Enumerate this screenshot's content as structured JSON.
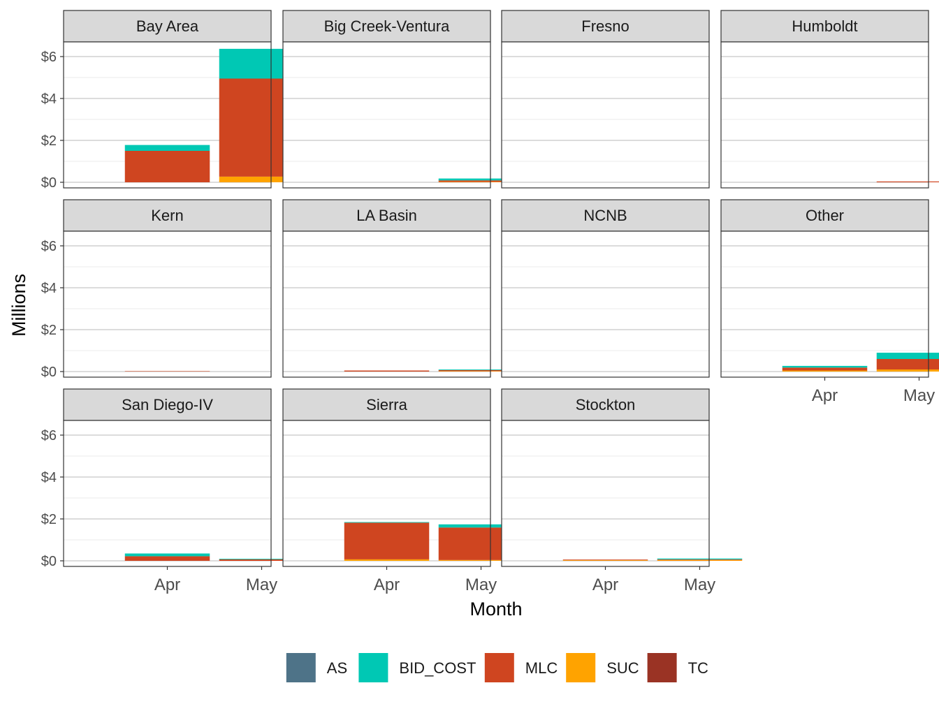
{
  "chart_data": {
    "type": "bar",
    "stacked": true,
    "faceted": true,
    "xlabel": "Month",
    "ylabel": "Millions",
    "categories": [
      "Apr",
      "May"
    ],
    "ylim": [
      0,
      7
    ],
    "yticks": [
      0,
      2,
      4,
      6
    ],
    "ytick_labels": [
      "$0",
      "$2",
      "$4",
      "$6"
    ],
    "grid": true,
    "legend_position": "bottom",
    "legend": [
      {
        "name": "AS",
        "color": "#4E7388"
      },
      {
        "name": "BID_COST",
        "color": "#00C8B4"
      },
      {
        "name": "MLC",
        "color": "#CF4520"
      },
      {
        "name": "SUC",
        "color": "#FFA300"
      },
      {
        "name": "TC",
        "color": "#9A3324"
      }
    ],
    "stack_order": [
      "SUC",
      "MLC",
      "TC",
      "BID_COST",
      "AS"
    ],
    "facets": [
      {
        "name": "Bay Area",
        "data": [
          {
            "AS": 0,
            "BID_COST": 0.28,
            "MLC": 1.5,
            "SUC": 0,
            "TC": 0
          },
          {
            "AS": 0,
            "BID_COST": 1.42,
            "MLC": 4.68,
            "SUC": 0.27,
            "TC": 0
          }
        ]
      },
      {
        "name": "Big Creek-Ventura",
        "data": [
          {
            "AS": 0,
            "BID_COST": 0,
            "MLC": 0,
            "SUC": 0,
            "TC": 0
          },
          {
            "AS": 0,
            "BID_COST": 0.09,
            "MLC": 0.07,
            "SUC": 0.02,
            "TC": 0
          }
        ]
      },
      {
        "name": "Fresno",
        "data": [
          {
            "AS": 0,
            "BID_COST": 0,
            "MLC": 0,
            "SUC": 0,
            "TC": 0
          },
          {
            "AS": 0,
            "BID_COST": 0,
            "MLC": 0,
            "SUC": 0,
            "TC": 0
          }
        ]
      },
      {
        "name": "Humboldt",
        "data": [
          {
            "AS": 0,
            "BID_COST": 0,
            "MLC": 0,
            "SUC": 0,
            "TC": 0
          },
          {
            "AS": 0,
            "BID_COST": 0,
            "MLC": 0.04,
            "SUC": 0,
            "TC": 0
          }
        ]
      },
      {
        "name": "Kern",
        "data": [
          {
            "AS": 0,
            "BID_COST": 0,
            "MLC": 0.02,
            "SUC": 0,
            "TC": 0
          },
          {
            "AS": 0,
            "BID_COST": 0,
            "MLC": 0,
            "SUC": 0,
            "TC": 0
          }
        ]
      },
      {
        "name": "LA Basin",
        "data": [
          {
            "AS": 0,
            "BID_COST": 0,
            "MLC": 0.05,
            "SUC": 0,
            "TC": 0
          },
          {
            "AS": 0,
            "BID_COST": 0.03,
            "MLC": 0.05,
            "SUC": 0.02,
            "TC": 0
          }
        ]
      },
      {
        "name": "NCNB",
        "data": [
          {
            "AS": 0,
            "BID_COST": 0,
            "MLC": 0,
            "SUC": 0,
            "TC": 0
          },
          {
            "AS": 0,
            "BID_COST": 0,
            "MLC": 0,
            "SUC": 0,
            "TC": 0
          }
        ]
      },
      {
        "name": "Other",
        "data": [
          {
            "AS": 0,
            "BID_COST": 0.08,
            "MLC": 0.14,
            "SUC": 0.05,
            "TC": 0
          },
          {
            "AS": 0,
            "BID_COST": 0.3,
            "MLC": 0.5,
            "SUC": 0.1,
            "TC": 0
          }
        ]
      },
      {
        "name": "San Diego-IV",
        "data": [
          {
            "AS": 0,
            "BID_COST": 0.13,
            "MLC": 0.22,
            "SUC": 0,
            "TC": 0
          },
          {
            "AS": 0,
            "BID_COST": 0.03,
            "MLC": 0.07,
            "SUC": 0,
            "TC": 0
          }
        ]
      },
      {
        "name": "Sierra",
        "data": [
          {
            "AS": 0,
            "BID_COST": 0.03,
            "MLC": 1.75,
            "SUC": 0.07,
            "TC": 0
          },
          {
            "AS": 0,
            "BID_COST": 0.15,
            "MLC": 1.55,
            "SUC": 0.04,
            "TC": 0
          }
        ]
      },
      {
        "name": "Stockton",
        "data": [
          {
            "AS": 0,
            "BID_COST": 0,
            "MLC": 0.03,
            "SUC": 0.03,
            "TC": 0
          },
          {
            "AS": 0,
            "BID_COST": 0.04,
            "MLC": 0.03,
            "SUC": 0.04,
            "TC": 0
          }
        ]
      }
    ]
  }
}
